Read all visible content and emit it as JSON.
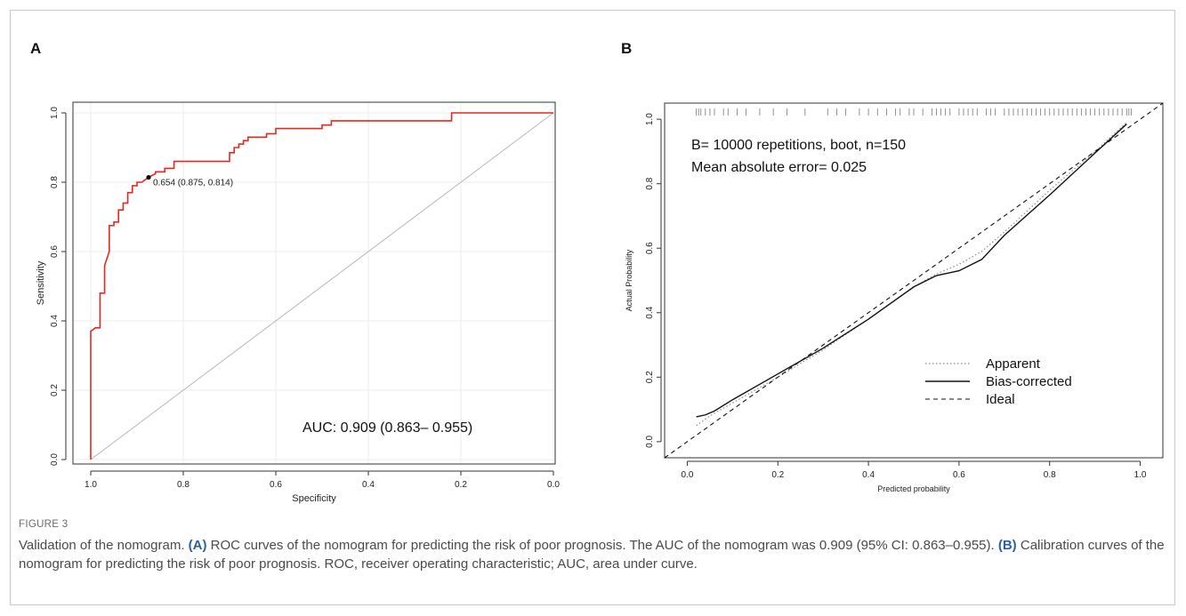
{
  "figure": {
    "panel_a_label": "A",
    "panel_b_label": "B",
    "caption_label": "FIGURE 3",
    "caption_title": "Validation of the nomogram.",
    "caption_a_tag": "(A)",
    "caption_a_text": "ROC curves of the nomogram for predicting the risk of poor prognosis. The AUC of the nomogram was 0.909 (95% CI: 0.863–0.955).",
    "caption_b_tag": "(B)",
    "caption_b_text": "Calibration curves of the nomogram for predicting the risk of poor prognosis. ROC, receiver operating characteristic; AUC, area under curve."
  },
  "chart_data": [
    {
      "panel": "A",
      "type": "line",
      "xlabel": "Specificity",
      "ylabel": "Sensitivity",
      "xlim": [
        1.0,
        0.0
      ],
      "ylim": [
        0.0,
        1.0
      ],
      "xticks": [
        "1.0",
        "0.8",
        "0.6",
        "0.4",
        "0.2",
        "0.0"
      ],
      "yticks": [
        "0.0",
        "0.2",
        "0.4",
        "0.6",
        "0.8",
        "1.0"
      ],
      "grid": true,
      "annotation": "AUC: 0.909 (0.863– 0.955)",
      "threshold_point": {
        "label": "0.654 (0.875, 0.814)",
        "specificity": 0.875,
        "sensitivity": 0.814
      },
      "series": [
        {
          "color": "#e8281c",
          "specificity": [
            1.0,
            1.0,
            0.99,
            0.98,
            0.98,
            0.97,
            0.97,
            0.96,
            0.96,
            0.95,
            0.95,
            0.94,
            0.94,
            0.93,
            0.93,
            0.92,
            0.92,
            0.91,
            0.91,
            0.9,
            0.9,
            0.89,
            0.89,
            0.875,
            0.875,
            0.86,
            0.86,
            0.84,
            0.84,
            0.82,
            0.82,
            0.7,
            0.7,
            0.69,
            0.69,
            0.68,
            0.68,
            0.67,
            0.67,
            0.66,
            0.66,
            0.65,
            0.65,
            0.62,
            0.62,
            0.6,
            0.6,
            0.5,
            0.5,
            0.48,
            0.48,
            0.22,
            0.22,
            0.0
          ],
          "sensitivity": [
            0.0,
            0.37,
            0.38,
            0.38,
            0.48,
            0.48,
            0.56,
            0.6,
            0.675,
            0.675,
            0.685,
            0.685,
            0.72,
            0.72,
            0.74,
            0.74,
            0.77,
            0.77,
            0.79,
            0.79,
            0.8,
            0.8,
            0.8,
            0.814,
            0.814,
            0.825,
            0.83,
            0.83,
            0.84,
            0.84,
            0.86,
            0.86,
            0.885,
            0.885,
            0.9,
            0.9,
            0.91,
            0.91,
            0.92,
            0.92,
            0.93,
            0.93,
            0.93,
            0.93,
            0.94,
            0.94,
            0.955,
            0.955,
            0.965,
            0.965,
            0.977,
            0.977,
            1.0,
            1.0
          ]
        },
        {
          "color": "#b8b8b8",
          "specificity": [
            1.0,
            0.0
          ],
          "sensitivity": [
            0.0,
            1.0
          ]
        }
      ]
    },
    {
      "panel": "B",
      "type": "line",
      "xlabel": "Predicted probability",
      "ylabel": "Actual Probability",
      "xlim": [
        -0.05,
        1.05
      ],
      "ylim": [
        -0.05,
        1.05
      ],
      "xticks": [
        "0.0",
        "0.2",
        "0.4",
        "0.6",
        "0.8",
        "1.0"
      ],
      "yticks": [
        "0.0",
        "0.2",
        "0.4",
        "0.6",
        "0.8",
        "1.0"
      ],
      "grid": false,
      "annotations": [
        "B= 10000 repetitions, boot, n=150",
        "Mean absolute error= 0.025"
      ],
      "legend_position": "bottom-right",
      "series": [
        {
          "name": "Apparent",
          "style": "dotted",
          "x": [
            0.02,
            0.05,
            0.1,
            0.2,
            0.3,
            0.4,
            0.5,
            0.55,
            0.6,
            0.65,
            0.7,
            0.8,
            0.9,
            0.97
          ],
          "y": [
            0.05,
            0.08,
            0.12,
            0.2,
            0.285,
            0.38,
            0.48,
            0.52,
            0.55,
            0.59,
            0.65,
            0.78,
            0.9,
            0.99
          ]
        },
        {
          "name": "Bias-corrected",
          "style": "solid",
          "x": [
            0.02,
            0.04,
            0.06,
            0.1,
            0.2,
            0.3,
            0.4,
            0.5,
            0.55,
            0.6,
            0.65,
            0.7,
            0.8,
            0.9,
            0.97
          ],
          "y": [
            0.077,
            0.083,
            0.095,
            0.13,
            0.21,
            0.29,
            0.38,
            0.48,
            0.515,
            0.53,
            0.565,
            0.64,
            0.765,
            0.895,
            0.985
          ]
        },
        {
          "name": "Ideal",
          "style": "dashed",
          "x": [
            -0.05,
            1.05
          ],
          "y": [
            -0.05,
            1.05
          ]
        }
      ],
      "rug_predictions": [
        0.02,
        0.025,
        0.03,
        0.04,
        0.05,
        0.06,
        0.08,
        0.09,
        0.11,
        0.13,
        0.16,
        0.19,
        0.22,
        0.26,
        0.31,
        0.33,
        0.35,
        0.38,
        0.4,
        0.42,
        0.44,
        0.46,
        0.47,
        0.49,
        0.5,
        0.52,
        0.54,
        0.55,
        0.56,
        0.57,
        0.58,
        0.6,
        0.61,
        0.62,
        0.63,
        0.64,
        0.66,
        0.67,
        0.68,
        0.7,
        0.71,
        0.72,
        0.73,
        0.74,
        0.75,
        0.76,
        0.77,
        0.78,
        0.79,
        0.8,
        0.81,
        0.82,
        0.83,
        0.84,
        0.85,
        0.86,
        0.87,
        0.88,
        0.89,
        0.9,
        0.91,
        0.92,
        0.93,
        0.94,
        0.95,
        0.96,
        0.97,
        0.975,
        0.98
      ]
    }
  ]
}
